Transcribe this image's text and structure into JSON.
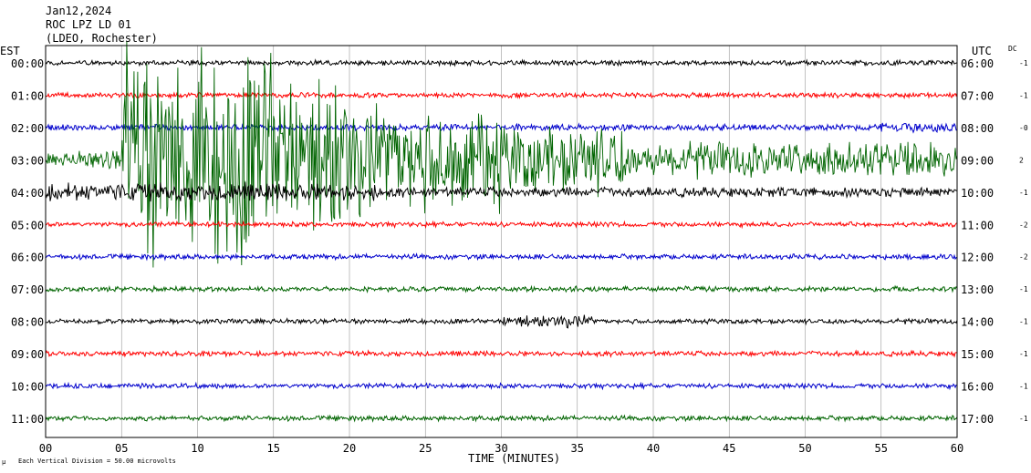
{
  "header": {
    "date": "Jan12,2024",
    "station": "ROC LPZ LD 01",
    "network": "(LDEO, Rochester)"
  },
  "chart_data": {
    "type": "line",
    "left_axis_title": "EST",
    "right_axis_title": "UTC",
    "dc_title": "DC",
    "xlabel": "TIME (MINUTES)",
    "xlim": [
      0,
      60
    ],
    "x_ticks": [
      "00",
      "05",
      "10",
      "15",
      "20",
      "25",
      "30",
      "35",
      "40",
      "45",
      "50",
      "55",
      "60"
    ],
    "footer_note": "Each Vertical Division =   50.00 microvolts",
    "grid": true,
    "colors": {
      "black": "#000000",
      "red": "#ff0000",
      "blue": "#0000cc",
      "green": "#006400"
    },
    "rows": [
      {
        "est": "00:00",
        "utc": "06:00",
        "dc": "-1",
        "color": "black"
      },
      {
        "est": "01:00",
        "utc": "07:00",
        "dc": "-1",
        "color": "red"
      },
      {
        "est": "02:00",
        "utc": "08:00",
        "dc": "-0",
        "color": "blue"
      },
      {
        "est": "03:00",
        "utc": "09:00",
        "dc": "2",
        "color": "green"
      },
      {
        "est": "04:00",
        "utc": "10:00",
        "dc": "-1",
        "color": "black"
      },
      {
        "est": "05:00",
        "utc": "11:00",
        "dc": "-2",
        "color": "red"
      },
      {
        "est": "06:00",
        "utc": "12:00",
        "dc": "-2",
        "color": "blue"
      },
      {
        "est": "07:00",
        "utc": "13:00",
        "dc": "-1",
        "color": "green"
      },
      {
        "est": "08:00",
        "utc": "14:00",
        "dc": "-1",
        "color": "black"
      },
      {
        "est": "09:00",
        "utc": "15:00",
        "dc": "-1",
        "color": "red"
      },
      {
        "est": "10:00",
        "utc": "16:00",
        "dc": "-1",
        "color": "blue"
      },
      {
        "est": "11:00",
        "utc": "17:00",
        "dc": "-1",
        "color": "green"
      }
    ]
  }
}
